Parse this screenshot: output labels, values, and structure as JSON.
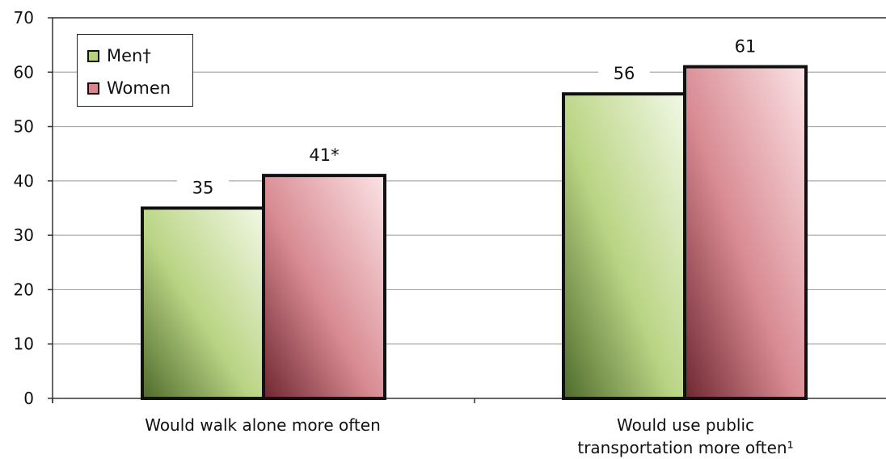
{
  "chart_data": {
    "type": "bar",
    "categories": [
      "Would walk alone more often",
      "Would use public\ntransportation more often¹"
    ],
    "series": [
      {
        "name": "Men†",
        "values": [
          35,
          56
        ],
        "labels": [
          "35",
          "56"
        ],
        "color": "#b7d17f"
      },
      {
        "name": "Women",
        "values": [
          41,
          61
        ],
        "labels": [
          "41*",
          "61"
        ],
        "color": "#d9868f"
      }
    ],
    "yticks": [
      0,
      10,
      20,
      30,
      40,
      50,
      60,
      70
    ],
    "ylim": [
      0,
      70
    ],
    "grid": true,
    "legend_position": "top-left"
  },
  "legend": {
    "men_label": "Men†",
    "women_label": "Women"
  },
  "xaxis": {
    "cat1": "Would walk alone more often",
    "cat2_line1": "Would use public",
    "cat2_line2": "transportation more often¹"
  }
}
